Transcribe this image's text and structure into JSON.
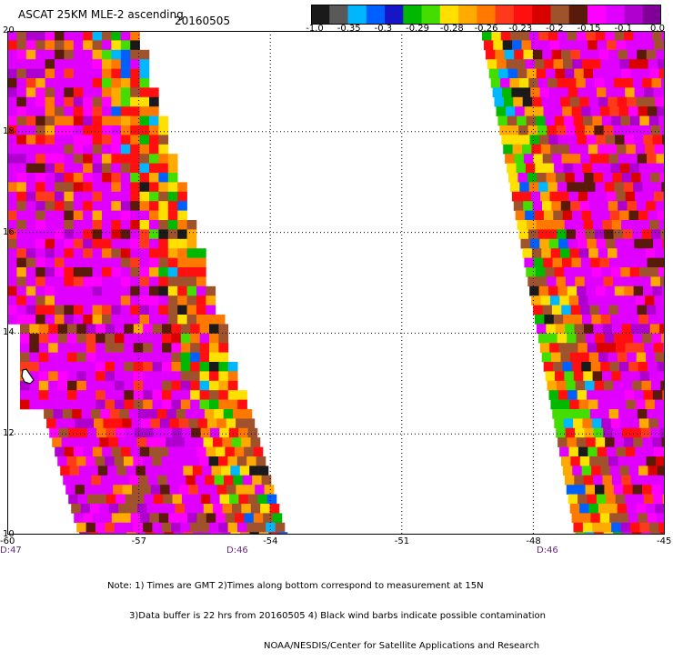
{
  "title": "ASCAT 25KM MLE-2 ascending",
  "date": "20160505",
  "colorbar": {
    "labels": [
      "-1.0",
      "-0.35",
      "-0.3",
      "-0.29",
      "-0.28",
      "-0.26",
      "-0.23",
      "-0.2",
      "-0.15",
      "-0.1",
      "0.0"
    ],
    "colors": [
      "#1a1a1a",
      "#595959",
      "#00b7ff",
      "#0060ff",
      "#1616c8",
      "#00b800",
      "#44dd00",
      "#ffe000",
      "#ffaa00",
      "#ff7800",
      "#ff3a1a",
      "#ff0f0f",
      "#d90000",
      "#a0522d",
      "#5a1a0a",
      "#ff00ff",
      "#e000ff",
      "#b000d0",
      "#800098"
    ]
  },
  "axes": {
    "x_ticks": [
      "-60",
      "-57",
      "-54",
      "-51",
      "-48",
      "-45"
    ],
    "y_ticks": [
      "20",
      "18",
      "16",
      "14",
      "12",
      "10"
    ]
  },
  "gmt_times": [
    "D:47",
    "D:46",
    "D:46"
  ],
  "notes": [
    "Note: 1) Times are GMT 2)Times along bottom correspond to measurement at 15N",
    "3)Data buffer is 22 hrs from 20160505 4) Black wind barbs indicate possible contamination",
    "NOAA/NESDIS/Center for Satellite Applications and Research"
  ],
  "map": {
    "lon_range": [
      -60,
      -45
    ],
    "lat_range": [
      10,
      20
    ],
    "swaths": 2,
    "land_feature": "Barbados"
  },
  "colors": {
    "plot_border": "#000000",
    "gridline": "#000000",
    "dominant_field": "#e000ff"
  }
}
